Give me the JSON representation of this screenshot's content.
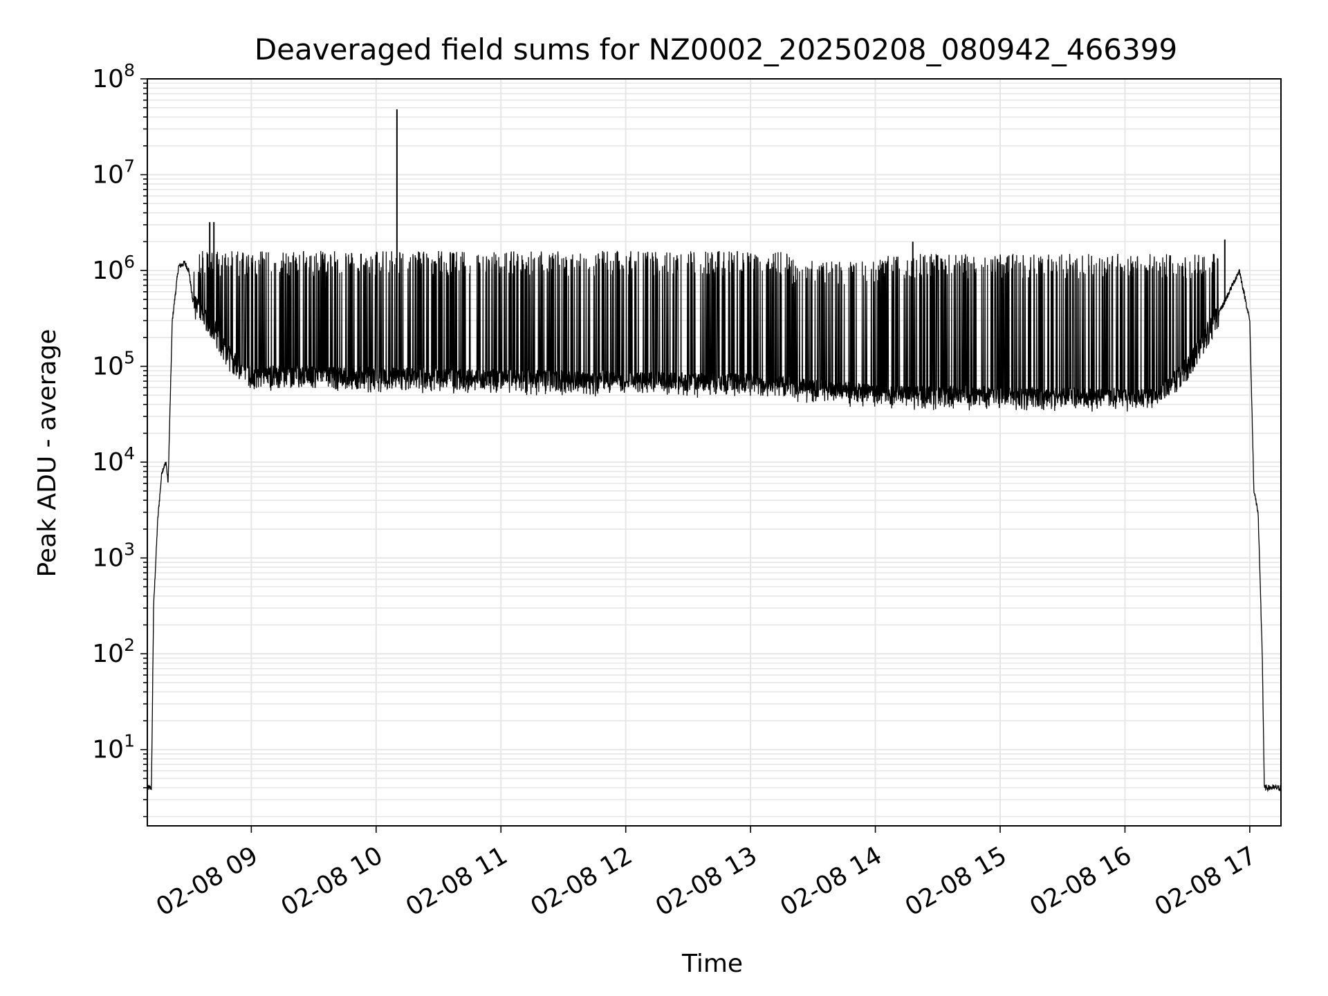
{
  "chart_data": {
    "type": "line",
    "title": "Deaveraged field sums for NZ0002_20250208_080942_466399",
    "xlabel": "Time",
    "ylabel": "Peak ADU - average",
    "y_scale": "log",
    "ylim": [
      1.6,
      100000000
    ],
    "xlim": [
      "2025-02-08 08:10",
      "2025-02-08 17:15"
    ],
    "grid": true,
    "line_color": "#000000",
    "grid_color": "#e6e6e6",
    "x_ticks": [
      {
        "value": "2025-02-08 09:00",
        "label": "02-08 09"
      },
      {
        "value": "2025-02-08 10:00",
        "label": "02-08 10"
      },
      {
        "value": "2025-02-08 11:00",
        "label": "02-08 11"
      },
      {
        "value": "2025-02-08 12:00",
        "label": "02-08 12"
      },
      {
        "value": "2025-02-08 13:00",
        "label": "02-08 13"
      },
      {
        "value": "2025-02-08 14:00",
        "label": "02-08 14"
      },
      {
        "value": "2025-02-08 15:00",
        "label": "02-08 15"
      },
      {
        "value": "2025-02-08 16:00",
        "label": "02-08 16"
      },
      {
        "value": "2025-02-08 17:00",
        "label": "02-08 17"
      }
    ],
    "y_ticks": [
      {
        "value": 10,
        "base": "10",
        "exp": "1"
      },
      {
        "value": 100,
        "base": "10",
        "exp": "2"
      },
      {
        "value": 1000,
        "base": "10",
        "exp": "3"
      },
      {
        "value": 10000,
        "base": "10",
        "exp": "4"
      },
      {
        "value": 100000,
        "base": "10",
        "exp": "5"
      },
      {
        "value": 1000000,
        "base": "10",
        "exp": "6"
      },
      {
        "value": 10000000,
        "base": "10",
        "exp": "7"
      },
      {
        "value": 100000000,
        "base": "10",
        "exp": "8"
      }
    ],
    "series": [
      {
        "envelope_points": [
          {
            "t": "2025-02-08 08:10",
            "y": 4
          },
          {
            "t": "2025-02-08 08:12",
            "y": 4
          },
          {
            "t": "2025-02-08 08:13",
            "y": 300
          },
          {
            "t": "2025-02-08 08:15",
            "y": 2500
          },
          {
            "t": "2025-02-08 08:17",
            "y": 8000
          },
          {
            "t": "2025-02-08 08:19",
            "y": 10000
          },
          {
            "t": "2025-02-08 08:20",
            "y": 6000
          },
          {
            "t": "2025-02-08 08:22",
            "y": 300000
          },
          {
            "t": "2025-02-08 08:25",
            "y": 1100000
          },
          {
            "t": "2025-02-08 08:28",
            "y": 1200000
          },
          {
            "t": "2025-02-08 08:30",
            "y": 1000000
          },
          {
            "t": "2025-02-08 08:32",
            "y": 450000
          },
          {
            "t": "2025-02-08 08:40",
            "y": 300000
          },
          {
            "t": "2025-02-08 08:50",
            "y": 120000
          },
          {
            "t": "2025-02-08 09:00",
            "y": 80000
          },
          {
            "t": "2025-02-08 13:00",
            "y": 65000
          },
          {
            "t": "2025-02-08 14:00",
            "y": 50000
          },
          {
            "t": "2025-02-08 16:15",
            "y": 45000
          },
          {
            "t": "2025-02-08 16:30",
            "y": 100000
          },
          {
            "t": "2025-02-08 16:45",
            "y": 350000
          },
          {
            "t": "2025-02-08 16:55",
            "y": 1000000
          },
          {
            "t": "2025-02-08 17:00",
            "y": 300000
          },
          {
            "t": "2025-02-08 17:02",
            "y": 5000
          },
          {
            "t": "2025-02-08 17:04",
            "y": 3000
          },
          {
            "t": "2025-02-08 17:06",
            "y": 100
          },
          {
            "t": "2025-02-08 17:07",
            "y": 4
          },
          {
            "t": "2025-02-08 17:15",
            "y": 4
          }
        ],
        "dense_ranges": [
          {
            "start": "2025-02-08 08:32",
            "end": "2025-02-08 13:20",
            "low": 55000,
            "high": 1600000
          },
          {
            "start": "2025-02-08 13:20",
            "end": "2025-02-08 14:05",
            "low": 45000,
            "high": 1300000
          },
          {
            "start": "2025-02-08 14:05",
            "end": "2025-02-08 16:45",
            "low": 40000,
            "high": 1500000
          }
        ],
        "spikes": [
          {
            "t": "2025-02-08 08:40",
            "y": 3200000
          },
          {
            "t": "2025-02-08 08:42",
            "y": 3200000
          },
          {
            "t": "2025-02-08 10:10",
            "y": 48000000
          },
          {
            "t": "2025-02-08 14:18",
            "y": 2000000
          },
          {
            "t": "2025-02-08 16:48",
            "y": 2100000
          }
        ]
      }
    ]
  }
}
